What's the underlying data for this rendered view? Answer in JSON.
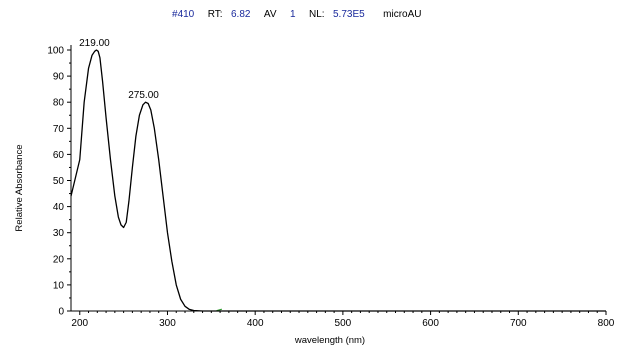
{
  "header": {
    "scan_prefix": "#",
    "scan_number": "410",
    "rt_label": "RT:",
    "rt_value": "6.82",
    "av_label": "AV",
    "av_value": "1",
    "nl_label": "NL:",
    "nl_value": "5.73E5",
    "unit": "microAU"
  },
  "colors": {
    "header_value": "#1a2a9c",
    "trace": "#000000",
    "baseline_mark": "#2e9a2e"
  },
  "chart_data": {
    "type": "line",
    "title": "",
    "xlabel": "wavelength (nm)",
    "ylabel": "Relative Absorbance",
    "xlim": [
      190,
      800
    ],
    "ylim": [
      0,
      100
    ],
    "x_ticks": [
      "200",
      "300",
      "400",
      "500",
      "600",
      "700",
      "800"
    ],
    "y_ticks": [
      "0",
      "10",
      "20",
      "30",
      "40",
      "50",
      "60",
      "70",
      "80",
      "90",
      "100"
    ],
    "grid": false,
    "series": [
      {
        "x": [
          190,
          195,
          200,
          205,
          210,
          214,
          217,
          219,
          221,
          223,
          226,
          230,
          235,
          240,
          244,
          247,
          250,
          253,
          256,
          260,
          264,
          268,
          272,
          275,
          278,
          281,
          285,
          290,
          295,
          300,
          305,
          310,
          315,
          320,
          325,
          330,
          340,
          350,
          400,
          500,
          600,
          700,
          800
        ],
        "y": [
          44,
          51,
          58,
          80,
          93,
          98,
          99.5,
          100,
          99.5,
          97,
          88,
          74,
          58,
          44,
          36,
          33,
          32,
          34,
          42,
          55,
          67,
          75,
          79,
          80,
          79.5,
          77,
          70,
          58,
          44,
          30,
          19,
          10,
          4.5,
          1.8,
          0.6,
          0.2,
          0,
          0,
          0,
          0,
          0,
          0,
          0
        ]
      }
    ],
    "annotations": [
      {
        "label": "219.00",
        "x": 219,
        "y": 100
      },
      {
        "label": "275.00",
        "x": 275,
        "y": 80
      }
    ]
  }
}
